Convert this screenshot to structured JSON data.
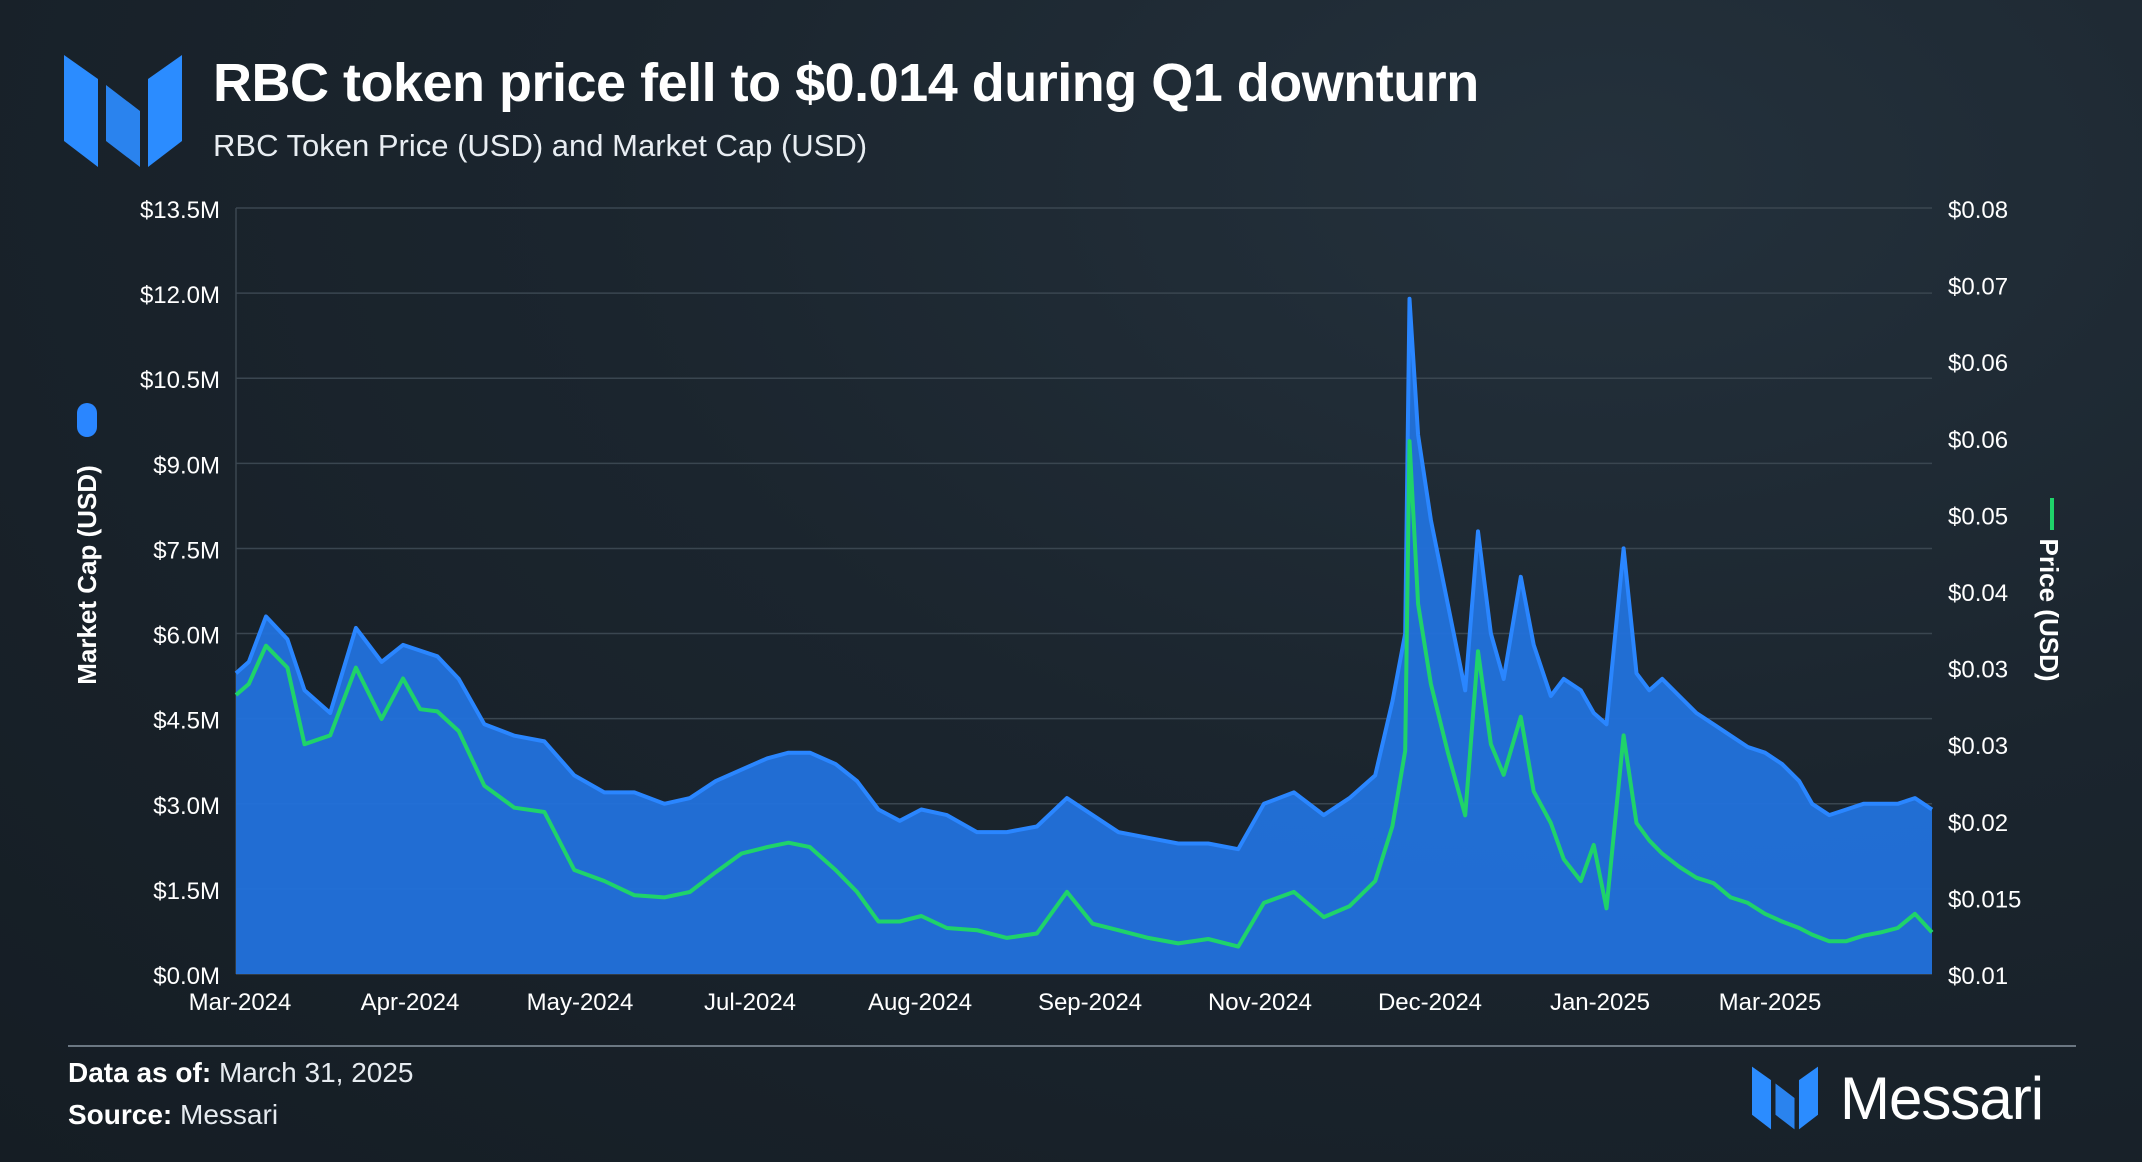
{
  "header": {
    "title": "RBC token price fell to $0.014 during Q1 downturn",
    "subtitle": "RBC Token Price (USD) and Market Cap (USD)"
  },
  "footer": {
    "data_as_of_label": "Data as of:",
    "data_as_of_value": "March 31, 2025",
    "source_label": "Source:",
    "source_value": "Messari",
    "brand_name": "Messari"
  },
  "colors": {
    "market_cap_fill": "#2272dc",
    "market_cap_line": "#2a86ff",
    "price_line": "#1fd36a",
    "grid": "#3a4650",
    "text": "#ffffff"
  },
  "chart_data": {
    "type": "area",
    "title": "RBC token price fell to $0.014 during Q1 downturn",
    "subtitle": "RBC Token Price (USD) and Market Cap (USD)",
    "x_tick_labels": [
      "Mar-2024",
      "Apr-2024",
      "May-2024",
      "Jul-2024",
      "Aug-2024",
      "Sep-2024",
      "Nov-2024",
      "Dec-2024",
      "Jan-2025",
      "Mar-2025"
    ],
    "x_range": [
      "2024-03-01",
      "2025-03-31"
    ],
    "left_axis": {
      "label": "Market Cap (USD)",
      "ylim": [
        0,
        13.5
      ],
      "units": "millions USD",
      "tick_labels": [
        "$0.0M",
        "$1.5M",
        "$3.0M",
        "$4.5M",
        "$6.0M",
        "$7.5M",
        "$9.0M",
        "$10.5M",
        "$12.0M",
        "$13.5M"
      ]
    },
    "right_axis": {
      "label": "Price (USD)",
      "ylim": [
        0.01,
        0.08
      ],
      "tick_labels": [
        "$0.01",
        "$0.015",
        "$0.02",
        "$0.03",
        "$0.03",
        "$0.04",
        "$0.05",
        "$0.06",
        "$0.06",
        "$0.07",
        "$0.08"
      ]
    },
    "legend": [
      "Market Cap (USD)",
      "Price (USD)"
    ],
    "grid": true,
    "series": [
      {
        "name": "Market Cap (USD)",
        "type": "area",
        "axis": "left",
        "x": [
          0,
          3,
          7,
          12,
          16,
          22,
          28,
          34,
          39,
          43,
          47,
          52,
          58,
          65,
          72,
          79,
          86,
          93,
          100,
          106,
          112,
          118,
          124,
          129,
          134,
          140,
          145,
          150,
          155,
          160,
          166,
          173,
          180,
          187,
          194,
          200,
          206,
          213,
          220,
          227,
          234,
          240,
          247,
          254,
          260,
          266,
          270,
          273,
          274,
          276,
          279,
          283,
          287,
          290,
          293,
          296,
          300,
          303,
          307,
          310,
          314,
          317,
          320,
          324,
          327,
          330,
          333,
          337,
          341,
          345,
          349,
          353,
          357,
          361,
          365,
          368,
          372,
          376,
          380,
          384,
          388,
          392,
          396
        ],
        "values": [
          5.3,
          5.5,
          6.3,
          5.9,
          5.0,
          4.6,
          6.1,
          5.5,
          5.8,
          5.7,
          5.6,
          5.2,
          4.4,
          4.2,
          4.1,
          3.5,
          3.2,
          3.2,
          3.0,
          3.1,
          3.4,
          3.6,
          3.8,
          3.9,
          3.9,
          3.7,
          3.4,
          2.9,
          2.7,
          2.9,
          2.8,
          2.5,
          2.5,
          2.6,
          3.1,
          2.8,
          2.5,
          2.4,
          2.3,
          2.3,
          2.2,
          3.0,
          3.2,
          2.8,
          3.1,
          3.5,
          4.8,
          6.0,
          11.9,
          9.5,
          8.0,
          6.5,
          5.0,
          7.8,
          6.0,
          5.2,
          7.0,
          5.8,
          4.9,
          5.2,
          5.0,
          4.6,
          4.4,
          7.5,
          5.3,
          5.0,
          5.2,
          4.9,
          4.6,
          4.4,
          4.2,
          4.0,
          3.9,
          3.7,
          3.4,
          3.0,
          2.8,
          2.9,
          3.0,
          3.0,
          3.0,
          3.1,
          2.9
        ]
      },
      {
        "name": "Price (USD)",
        "type": "line",
        "axis": "right",
        "x": [
          0,
          3,
          7,
          12,
          16,
          22,
          28,
          34,
          39,
          43,
          47,
          52,
          58,
          65,
          72,
          79,
          86,
          93,
          100,
          106,
          112,
          118,
          124,
          129,
          134,
          140,
          145,
          150,
          155,
          160,
          166,
          173,
          180,
          187,
          194,
          200,
          206,
          213,
          220,
          227,
          234,
          240,
          247,
          254,
          260,
          266,
          270,
          273,
          274,
          276,
          279,
          283,
          287,
          290,
          293,
          296,
          300,
          303,
          307,
          310,
          314,
          317,
          320,
          324,
          327,
          330,
          333,
          337,
          341,
          345,
          349,
          353,
          357,
          361,
          365,
          368,
          372,
          376,
          380,
          384,
          388,
          392,
          396
        ],
        "values": [
          0.0355,
          0.0365,
          0.04,
          0.038,
          0.031,
          0.0318,
          0.038,
          0.0333,
          0.037,
          0.0342,
          0.034,
          0.0322,
          0.0272,
          0.0252,
          0.0248,
          0.0195,
          0.0185,
          0.0172,
          0.017,
          0.0175,
          0.0193,
          0.021,
          0.0216,
          0.022,
          0.0216,
          0.0195,
          0.0175,
          0.0148,
          0.0148,
          0.0153,
          0.0142,
          0.014,
          0.0133,
          0.0137,
          0.0175,
          0.0146,
          0.014,
          0.0133,
          0.0128,
          0.0132,
          0.0125,
          0.0165,
          0.0175,
          0.0152,
          0.0162,
          0.0185,
          0.0235,
          0.0304,
          0.0587,
          0.0438,
          0.0365,
          0.0302,
          0.0245,
          0.0395,
          0.031,
          0.0282,
          0.0335,
          0.0267,
          0.0238,
          0.0205,
          0.0185,
          0.0218,
          0.016,
          0.0318,
          0.0238,
          0.0222,
          0.021,
          0.0198,
          0.0188,
          0.0183,
          0.017,
          0.0165,
          0.0155,
          0.0148,
          0.0142,
          0.0136,
          0.013,
          0.013,
          0.0135,
          0.0138,
          0.0142,
          0.0155,
          0.0138
        ]
      }
    ]
  }
}
